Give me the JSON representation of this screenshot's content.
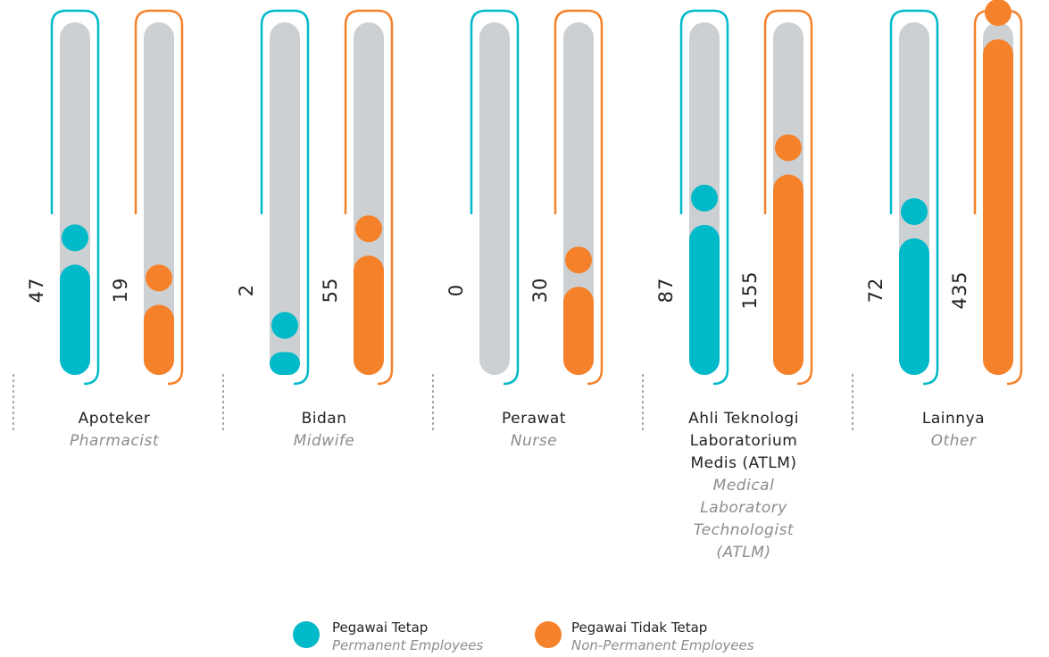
{
  "chart_data": {
    "type": "bar",
    "categories": [
      "Apoteker",
      "Bidan",
      "Perawat",
      "Ahli Teknologi Laboratorium Medis (ATLM)",
      "Lainnya"
    ],
    "categories_en": [
      "Pharmacist",
      "Midwife",
      "Nurse",
      "Medical Laboratory Technologist (ATLM)",
      "Other"
    ],
    "series": [
      {
        "name": "Pegawai Tetap",
        "name_en": "Permanent Employees",
        "color": "#00b9c9",
        "values": [
          47,
          2,
          0,
          87,
          72
        ]
      },
      {
        "name": "Pegawai Tidak Tetap",
        "name_en": "Non-Permanent Employees",
        "color": "#f5822a",
        "values": [
          19,
          55,
          30,
          155,
          435
        ]
      }
    ],
    "yscale": "sqrt",
    "ylim": [
      0,
      480
    ]
  }
}
